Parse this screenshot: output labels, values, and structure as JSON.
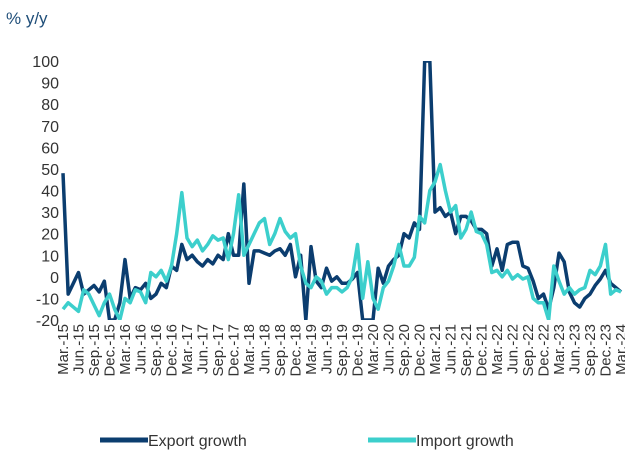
{
  "chart_data": {
    "type": "line",
    "y_label": "% y/y",
    "categories": [
      "Mar.-15",
      null,
      null,
      "Jun.-15",
      null,
      null,
      "Sep.-15",
      null,
      null,
      "Dec.-15",
      null,
      null,
      "Mar.-16",
      null,
      null,
      "Jun.-16",
      null,
      null,
      "Sep.-16",
      null,
      null,
      "Dec.-16",
      null,
      null,
      "Mar.-17",
      null,
      null,
      "Jun.-17",
      null,
      null,
      "Sep.-17",
      null,
      null,
      "Dec.-17",
      null,
      null,
      "Mar.-18",
      null,
      null,
      "Jun.-18",
      null,
      null,
      "Sep.-18",
      null,
      null,
      "Dec.-18",
      null,
      null,
      "Mar.-19",
      null,
      null,
      "Jun.-19",
      null,
      null,
      "Sep.-19",
      null,
      null,
      "Dec.-19",
      null,
      null,
      "Mar.-20",
      null,
      null,
      "Jun.-20",
      null,
      null,
      "Sep.-20",
      null,
      null,
      "Dec.-20",
      null,
      null,
      "Mar.-21",
      null,
      null,
      "Jun.-21",
      null,
      null,
      "Sep.-21",
      null,
      null,
      "Dec.-21",
      null,
      null,
      "Mar.-22",
      null,
      null,
      "Jun.-22",
      null,
      null,
      "Sep.-22",
      null,
      null,
      "Dec.-22",
      null,
      null,
      "Mar.-23",
      null,
      null,
      "Jun.-23",
      null,
      null,
      "Sep.-23",
      null,
      null,
      "Dec.-23",
      null,
      null,
      "Mar.-24"
    ],
    "series": [
      {
        "name": "Export growth",
        "color": "#0b3d6f",
        "values": [
          48,
          -8,
          -3,
          2,
          -8,
          -6,
          -4,
          -7,
          -2,
          -20,
          -20,
          -12,
          8,
          -10,
          -5,
          -6,
          -3,
          -10,
          -8,
          -3,
          -5,
          5,
          3,
          15,
          8,
          10,
          7,
          5,
          8,
          6,
          10,
          8,
          20,
          10,
          10,
          43,
          -3,
          12,
          12,
          11,
          10,
          12,
          13,
          10,
          15,
          0,
          10,
          -20,
          14,
          -2,
          -5,
          4,
          -2,
          0,
          -3,
          -3,
          -1,
          2,
          -20,
          -20,
          -20,
          4,
          -3,
          5,
          8,
          10,
          20,
          18,
          25,
          22,
          100,
          100,
          30,
          32,
          28,
          30,
          20,
          28,
          28,
          26,
          22,
          22,
          20,
          5,
          13,
          3,
          15,
          16,
          16,
          5,
          4,
          -2,
          -10,
          -8,
          -15,
          -5,
          11,
          7,
          -7,
          -12,
          -14,
          -10,
          -8,
          -4,
          -1,
          3,
          -3,
          -5,
          -7
        ]
      },
      {
        "name": "Import growth",
        "color": "#3ccfcc",
        "values": [
          -15,
          -12,
          -14,
          -16,
          -6,
          -8,
          -13,
          -18,
          -12,
          -8,
          -15,
          -20,
          -10,
          -12,
          -6,
          -7,
          -12,
          2,
          0,
          3,
          -2,
          5,
          20,
          39,
          18,
          14,
          17,
          12,
          15,
          19,
          17,
          18,
          8,
          20,
          38,
          10,
          15,
          20,
          25,
          27,
          15,
          20,
          27,
          21,
          18,
          20,
          5,
          -3,
          -5,
          0,
          -2,
          -8,
          -5,
          -5,
          -7,
          -5,
          0,
          15,
          -10,
          7,
          -10,
          -15,
          -5,
          -2,
          5,
          15,
          5,
          5,
          9,
          28,
          25,
          40,
          44,
          52,
          40,
          30,
          33,
          18,
          22,
          30,
          21,
          20,
          15,
          2,
          3,
          0,
          3,
          -1,
          1,
          -1,
          0,
          -10,
          -12,
          -12,
          -20,
          5,
          -2,
          -8,
          -5,
          -8,
          -6,
          -5,
          3,
          1,
          5,
          15,
          -8,
          -6,
          -7
        ]
      }
    ],
    "ylim": [
      -20,
      100
    ],
    "yticks": [
      -20,
      -10,
      0,
      10,
      20,
      30,
      40,
      50,
      60,
      70,
      80,
      90,
      100
    ],
    "grid": false
  }
}
